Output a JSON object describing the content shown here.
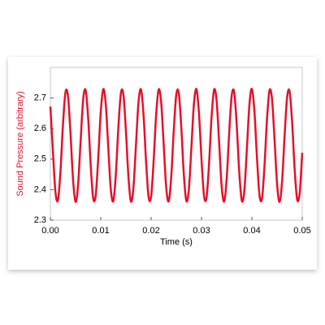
{
  "chart_data": {
    "type": "line",
    "x_label": "Time (s)",
    "y_label": "Sound Pressure (arbitrary)",
    "xlim": [
      0,
      0.05
    ],
    "ylim": [
      2.3,
      2.8
    ],
    "xticks": [
      {
        "value": 0,
        "label": "0.00"
      },
      {
        "value": 0.01,
        "label": "0.01"
      },
      {
        "value": 0.02,
        "label": "0.02"
      },
      {
        "value": 0.03,
        "label": "0.03"
      },
      {
        "value": 0.04,
        "label": "0.04"
      },
      {
        "value": 0.05,
        "label": "0.05"
      }
    ],
    "yticks": [
      2.3,
      2.4,
      2.5,
      2.6,
      2.7
    ],
    "grid": false,
    "x": [
      0,
      0.0005,
      0.001,
      0.0015,
      0.002,
      0.0025,
      0.003,
      0.0035,
      0.004,
      0.0045,
      0.005,
      0.0055,
      0.006,
      0.0065,
      0.007,
      0.0075,
      0.008,
      0.0085,
      0.009,
      0.0095,
      0.01,
      0.0105,
      0.011,
      0.0115,
      0.012,
      0.0125,
      0.013,
      0.0135,
      0.014,
      0.0145,
      0.015,
      0.0155,
      0.016,
      0.0165,
      0.017,
      0.0175,
      0.018,
      0.0185,
      0.019,
      0.0195,
      0.02,
      0.0205,
      0.021,
      0.0215,
      0.022,
      0.0225,
      0.023,
      0.0235,
      0.024,
      0.0245,
      0.025,
      0.0255,
      0.026,
      0.0265,
      0.027,
      0.0275,
      0.028,
      0.0285,
      0.029,
      0.0295,
      0.03,
      0.0305,
      0.031,
      0.0315,
      0.032,
      0.0325,
      0.033,
      0.0335,
      0.034,
      0.0345,
      0.035,
      0.0355,
      0.036,
      0.0365,
      0.037,
      0.0375,
      0.038,
      0.0385,
      0.039,
      0.0395,
      0.04,
      0.0405,
      0.041,
      0.0415,
      0.042,
      0.0425,
      0.043,
      0.0435,
      0.044,
      0.0445,
      0.045,
      0.0455,
      0.046,
      0.0465,
      0.047,
      0.0475,
      0.048,
      0.0485,
      0.049,
      0.0495,
      0.05
    ],
    "series": [
      {
        "name": "Sound Pressure",
        "color": "#e3112b",
        "values": [
          2.672,
          2.527,
          2.394,
          2.365,
          2.459,
          2.613,
          2.719,
          2.706,
          2.583,
          2.433,
          2.36,
          2.415,
          2.558,
          2.693,
          2.726,
          2.635,
          2.482,
          2.372,
          2.381,
          2.503,
          2.653,
          2.729,
          2.679,
          2.536,
          2.4,
          2.363,
          2.451,
          2.604,
          2.716,
          2.711,
          2.592,
          2.441,
          2.361,
          2.408,
          2.549,
          2.687,
          2.728,
          2.643,
          2.491,
          2.376,
          2.377,
          2.494,
          2.646,
          2.728,
          2.685,
          2.546,
          2.406,
          2.362,
          2.443,
          2.595,
          2.712,
          2.715,
          2.601,
          2.448,
          2.363,
          2.402,
          2.54,
          2.681,
          2.729,
          2.65,
          2.5,
          2.38,
          2.374,
          2.485,
          2.638,
          2.727,
          2.691,
          2.555,
          2.412,
          2.361,
          2.436,
          2.586,
          2.708,
          2.718,
          2.609,
          2.456,
          2.364,
          2.396,
          2.53,
          2.675,
          2.73,
          2.658,
          2.509,
          2.384,
          2.37,
          2.476,
          2.629,
          2.725,
          2.696,
          2.564,
          2.419,
          2.36,
          2.428,
          2.577,
          2.703,
          2.721,
          2.618,
          2.465,
          2.367,
          2.391,
          2.521
        ]
      }
    ]
  }
}
